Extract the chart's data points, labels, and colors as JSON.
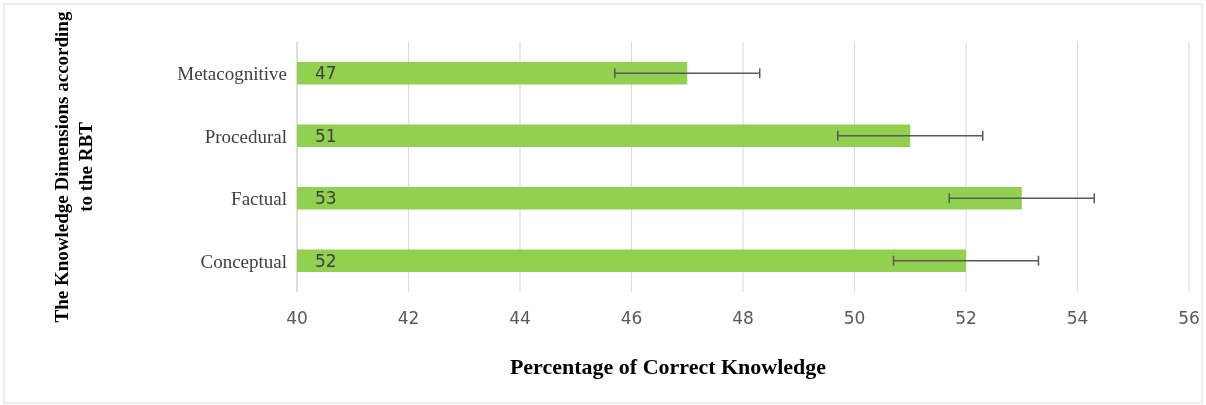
{
  "chart_data": {
    "type": "bar",
    "orientation": "horizontal",
    "xlabel": "Percentage of Correct Knowledge",
    "ylabel": "The Knowledge Dimensions according to the RBT",
    "categories": [
      "Metacognitive",
      "Procedural",
      "Factual",
      "Conceptual"
    ],
    "values": [
      47,
      51,
      53,
      52
    ],
    "color": "#92d050",
    "errors": [
      1.3,
      1.3,
      1.3,
      1.3
    ],
    "xlim": [
      40,
      56
    ],
    "xticks": [
      40,
      42,
      44,
      46,
      48,
      50,
      52,
      54,
      56
    ],
    "grid": "x",
    "data_labels": true
  }
}
